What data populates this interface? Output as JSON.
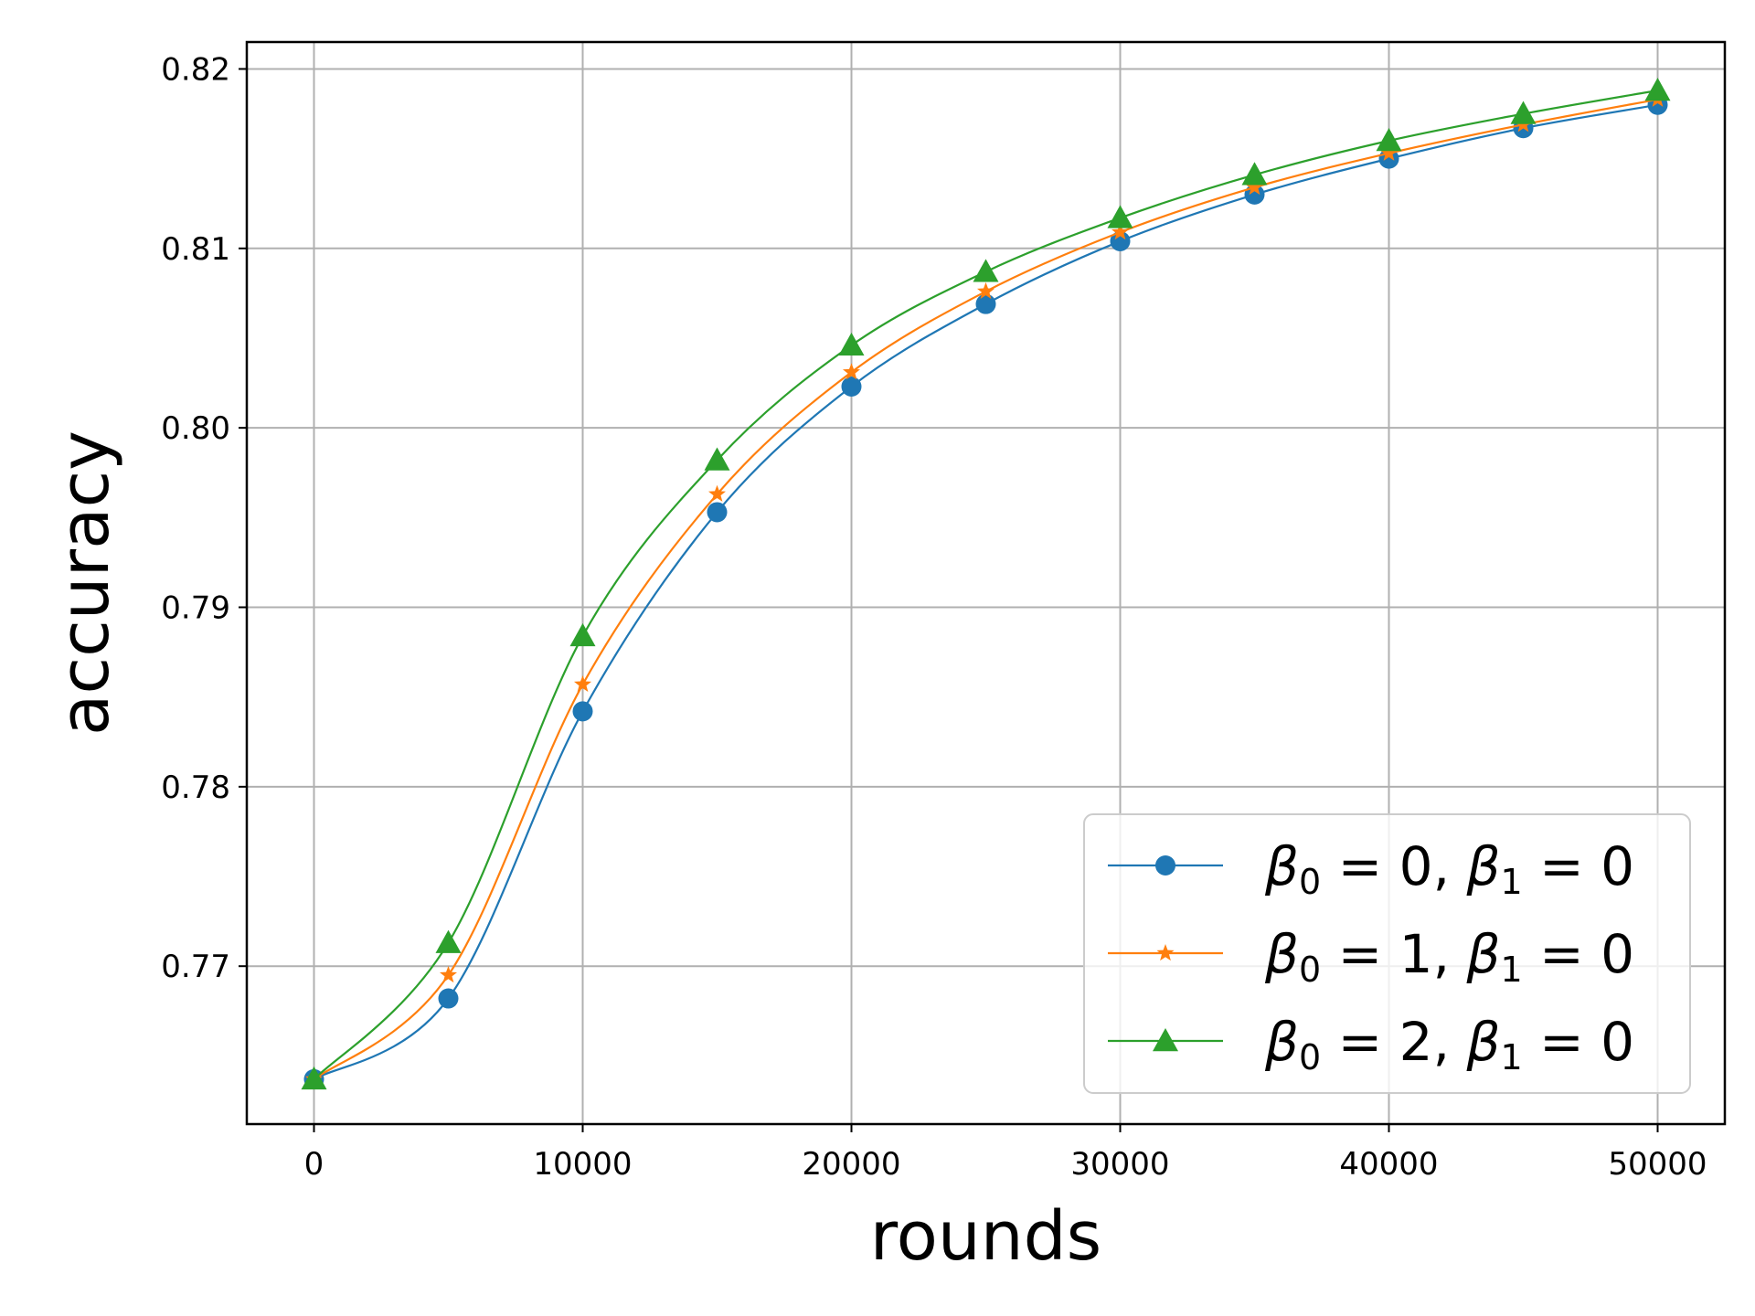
{
  "chart_data": {
    "type": "line",
    "xlabel": "rounds",
    "ylabel": "accuracy",
    "xlim": [
      -2500,
      52500
    ],
    "ylim": [
      0.7612,
      0.8215
    ],
    "xticks": [
      0,
      10000,
      20000,
      30000,
      40000,
      50000
    ],
    "xtick_labels": [
      "0",
      "10000",
      "20000",
      "30000",
      "40000",
      "50000"
    ],
    "yticks": [
      0.77,
      0.78,
      0.79,
      0.8,
      0.81,
      0.82
    ],
    "ytick_labels": [
      "0.77",
      "0.78",
      "0.79",
      "0.80",
      "0.81",
      "0.82"
    ],
    "grid": true,
    "legend_position": "lower-right",
    "x": [
      0,
      5000,
      10000,
      15000,
      20000,
      25000,
      30000,
      35000,
      40000,
      45000,
      50000
    ],
    "series": [
      {
        "name": "β₀ = 0, β₁ = 0",
        "legend_parts": [
          "β",
          "0",
          " = 0, ",
          "β",
          "1",
          " = 0"
        ],
        "color": "#1f77b4",
        "marker": "circle",
        "values": [
          0.7637,
          0.7682,
          0.7842,
          0.7953,
          0.8023,
          0.8069,
          0.8104,
          0.813,
          0.815,
          0.8167,
          0.818
        ]
      },
      {
        "name": "β₀ = 1, β₁ = 0",
        "legend_parts": [
          "β",
          "0",
          " = 1, ",
          "β",
          "1",
          " = 0"
        ],
        "color": "#ff7f0e",
        "marker": "star",
        "values": [
          0.7637,
          0.7695,
          0.7857,
          0.7963,
          0.8031,
          0.8076,
          0.8109,
          0.8134,
          0.8153,
          0.8169,
          0.8183
        ]
      },
      {
        "name": "β₀ = 2, β₁ = 0",
        "legend_parts": [
          "β",
          "0",
          " = 2, ",
          "β",
          "1",
          " = 0"
        ],
        "color": "#2ca02c",
        "marker": "triangle",
        "values": [
          0.7637,
          0.7713,
          0.7884,
          0.7982,
          0.8046,
          0.8087,
          0.8117,
          0.8141,
          0.816,
          0.8175,
          0.8188
        ]
      }
    ]
  }
}
